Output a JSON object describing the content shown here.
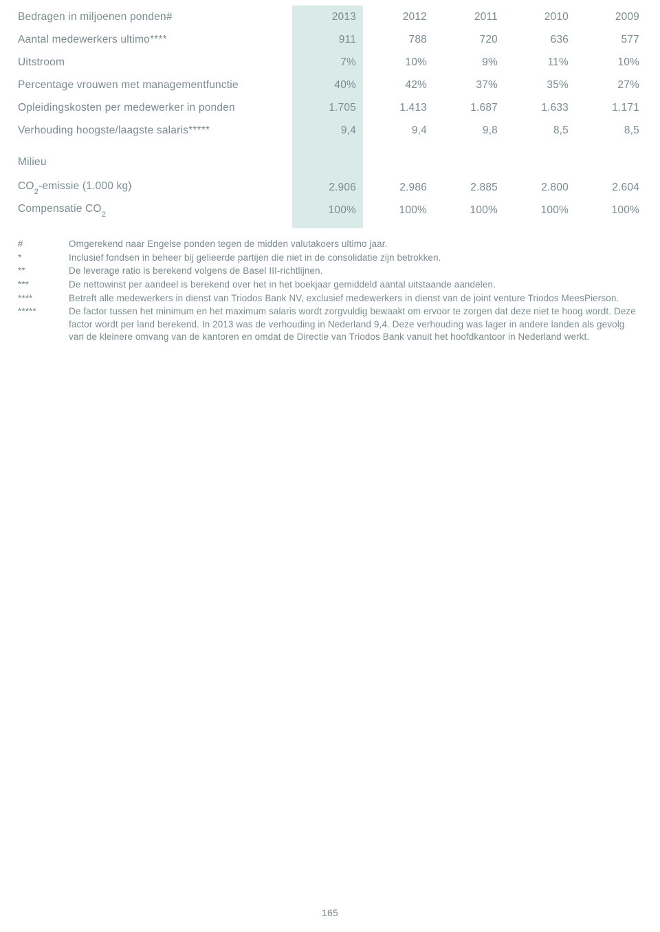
{
  "colors": {
    "text": "#7a8b8f",
    "highlight_bg": "#d9eae8",
    "page_bg": "#ffffff"
  },
  "table": {
    "header": {
      "label": "Bedragen in miljoenen ponden#",
      "years": [
        "2013",
        "2012",
        "2011",
        "2010",
        "2009"
      ]
    },
    "rows": [
      {
        "label": "Aantal medewerkers ultimo****",
        "vals": [
          "911",
          "788",
          "720",
          "636",
          "577"
        ]
      },
      {
        "label": "Uitstroom",
        "vals": [
          "7%",
          "10%",
          "9%",
          "11%",
          "10%"
        ]
      },
      {
        "label": "Percentage vrouwen met managementfunctie",
        "vals": [
          "40%",
          "42%",
          "37%",
          "35%",
          "27%"
        ]
      },
      {
        "label": "Opleidingskosten per medewerker in ponden",
        "vals": [
          "1.705",
          "1.413",
          "1.687",
          "1.633",
          "1.171"
        ]
      },
      {
        "label": "Verhouding hoogste/laagste salaris*****",
        "vals": [
          "9,4",
          "9,4",
          "9,8",
          "8,5",
          "8,5"
        ]
      }
    ],
    "section_label": "Milieu",
    "co2_label_pre": "CO",
    "co2_label_sub": "2",
    "co2_label_post": "-emissie (1.000 kg)",
    "co2_vals": [
      "2.906",
      "2.986",
      "2.885",
      "2.800",
      "2.604"
    ],
    "comp_label_pre": "Compensatie CO",
    "comp_label_sub": "2",
    "comp_vals": [
      "100%",
      "100%",
      "100%",
      "100%",
      "100%"
    ]
  },
  "footnotes": [
    {
      "sym": "#",
      "txt": "Omgerekend naar Engelse ponden tegen de midden valutakoers ultimo jaar."
    },
    {
      "sym": "*",
      "txt": "Inclusief fondsen in beheer bij gelieerde partijen die niet in de consolidatie zijn betrokken."
    },
    {
      "sym": "**",
      "txt": "De leverage ratio is berekend volgens de Basel III-richtlijnen."
    },
    {
      "sym": "***",
      "txt": "De nettowinst per aandeel is berekend over het in het boekjaar gemiddeld aantal uitstaande aandelen."
    },
    {
      "sym": "****",
      "txt": "Betreft alle medewerkers in dienst van Triodos Bank NV, exclusief medewerkers in dienst van de joint venture Triodos MeesPierson."
    },
    {
      "sym": "*****",
      "txt": "De factor tussen het minimum en het maximum salaris wordt zorgvuldig bewaakt om ervoor te zorgen dat deze niet te hoog wordt. Deze factor wordt per land berekend. In 2013 was de verhouding in Nederland 9,4. Deze verhouding was lager in andere landen als gevolg van de kleinere omvang van de kantoren en omdat de Directie van Triodos Bank vanuit het hoofdkantoor in Nederland werkt."
    }
  ],
  "page_number": "165"
}
